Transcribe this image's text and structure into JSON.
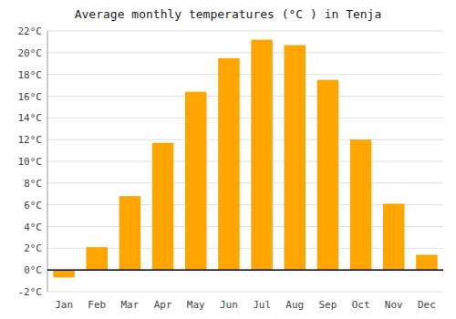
{
  "chart_data": {
    "type": "bar",
    "title": "Average monthly temperatures (°C ) in Tenja",
    "categories": [
      "Jan",
      "Feb",
      "Mar",
      "Apr",
      "May",
      "Jun",
      "Jul",
      "Aug",
      "Sep",
      "Oct",
      "Nov",
      "Dec"
    ],
    "values": [
      -0.7,
      2.1,
      6.8,
      11.7,
      16.4,
      19.5,
      21.2,
      20.7,
      17.5,
      12.0,
      6.1,
      1.4
    ],
    "color": "#FFA500",
    "ylim": [
      -2,
      22
    ],
    "yticks": [
      {
        "value": -2,
        "label": "-2°C"
      },
      {
        "value": 0,
        "label": "0°C"
      },
      {
        "value": 2,
        "label": "2°C"
      },
      {
        "value": 4,
        "label": "4°C"
      },
      {
        "value": 6,
        "label": "6°C"
      },
      {
        "value": 8,
        "label": "8°C"
      },
      {
        "value": 10,
        "label": "10°C"
      },
      {
        "value": 12,
        "label": "12°C"
      },
      {
        "value": 14,
        "label": "14°C"
      },
      {
        "value": 16,
        "label": "16°C"
      },
      {
        "value": 18,
        "label": "18°C"
      },
      {
        "value": 20,
        "label": "20°C"
      },
      {
        "value": 22,
        "label": "22°C"
      }
    ],
    "grid": true
  }
}
